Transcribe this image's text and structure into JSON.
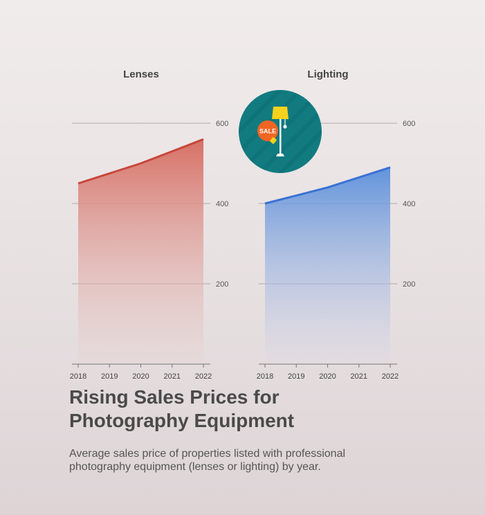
{
  "title": "Rising Sales Prices for Photography Equipment",
  "subtitle": "Average sales price of properties listed with professional photography equipment (lenses or lighting) by year.",
  "icon": {
    "name": "floor-lamp-sale-tag-icon",
    "tag_text": "SALE"
  },
  "colors": {
    "lenses_line": "#c8463a",
    "lenses_fill": "#d9776c",
    "lighting_line": "#3a72d4",
    "lighting_fill": "#6a9ae0",
    "badge_bg": "#127b80"
  },
  "chart_data": [
    {
      "type": "area",
      "title": "Lenses",
      "categories": [
        "2018",
        "2019",
        "2020",
        "2021",
        "2022"
      ],
      "values": [
        450,
        475,
        500,
        530,
        560
      ],
      "ylim": [
        0,
        600
      ],
      "yticks": [
        200,
        400,
        600
      ],
      "grid": true
    },
    {
      "type": "area",
      "title": "Lighting",
      "categories": [
        "2018",
        "2019",
        "2020",
        "2021",
        "2022"
      ],
      "values": [
        400,
        420,
        440,
        465,
        490
      ],
      "ylim": [
        0,
        600
      ],
      "yticks": [
        200,
        400,
        600
      ],
      "grid": true
    }
  ]
}
